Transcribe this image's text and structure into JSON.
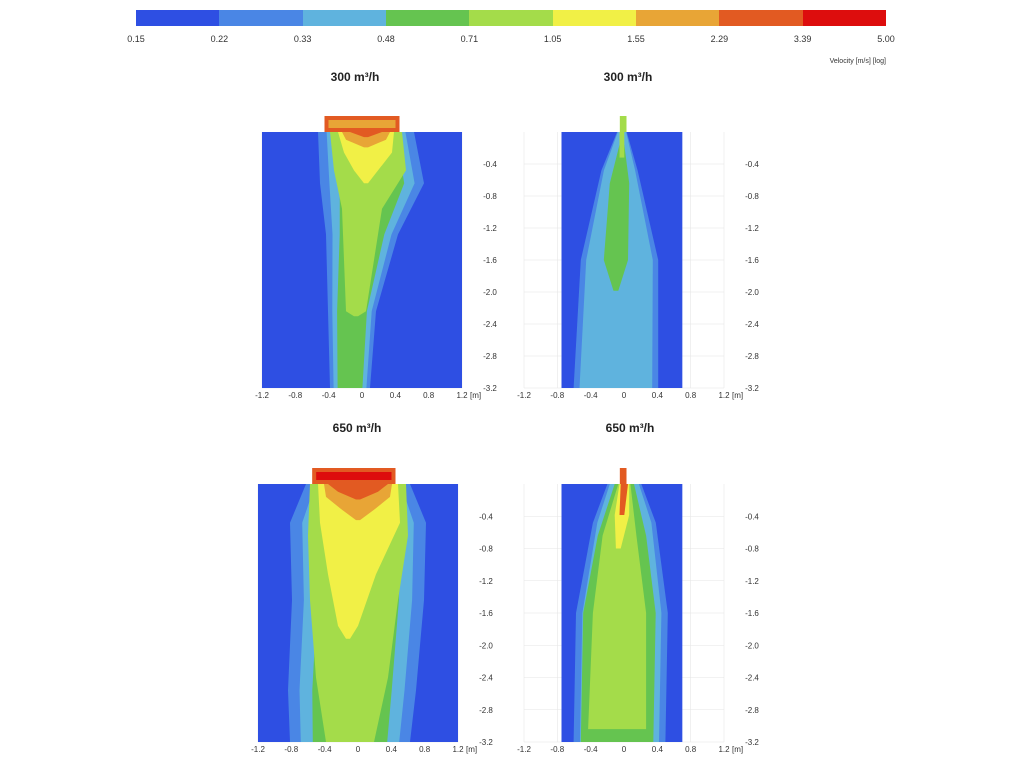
{
  "colorbar": {
    "colors": [
      "#2e4fe3",
      "#4a86e5",
      "#5fb3de",
      "#65c450",
      "#a4dc4a",
      "#f1f046",
      "#e8a536",
      "#e25a22",
      "#dd0d0d"
    ],
    "ticks": [
      "0.15",
      "0.22",
      "0.33",
      "0.48",
      "0.71",
      "1.05",
      "1.55",
      "2.29",
      "3.39",
      "5.00"
    ],
    "label": "Velocity [m/s] [log]"
  },
  "chart_data": [
    {
      "type": "heatmap",
      "title": "300 m³/h",
      "xlabel": "[m]",
      "xticks": [
        -1.2,
        -0.8,
        -0.4,
        0,
        0.4,
        0.8,
        1.2
      ],
      "yticks": [
        -0.4,
        -0.8,
        -1.2,
        -1.6,
        -2.0,
        -2.4,
        -2.8,
        -3.2
      ],
      "xlim": [
        -1.2,
        1.2
      ],
      "ylim": [
        -3.2,
        0
      ],
      "flow_m3h": 300,
      "variant": "wide"
    },
    {
      "type": "heatmap",
      "title": "300 m³/h",
      "xlabel": "[m]",
      "xticks": [
        -1.2,
        -0.8,
        -0.4,
        0,
        0.4,
        0.8,
        1.2
      ],
      "yticks": [
        -0.4,
        -0.8,
        -1.2,
        -1.6,
        -2.0,
        -2.4,
        -2.8,
        -3.2
      ],
      "xlim": [
        -1.2,
        1.2
      ],
      "ylim": [
        -3.2,
        0
      ],
      "flow_m3h": 300,
      "variant": "narrow"
    },
    {
      "type": "heatmap",
      "title": "650 m³/h",
      "xlabel": "[m]",
      "xticks": [
        -1.2,
        -0.8,
        -0.4,
        0,
        0.4,
        0.8,
        1.2
      ],
      "yticks": [
        -0.4,
        -0.8,
        -1.2,
        -1.6,
        -2.0,
        -2.4,
        -2.8,
        -3.2
      ],
      "xlim": [
        -1.2,
        1.2
      ],
      "ylim": [
        -3.2,
        0
      ],
      "flow_m3h": 650,
      "variant": "wide"
    },
    {
      "type": "heatmap",
      "title": "650 m³/h",
      "xlabel": "[m]",
      "xticks": [
        -1.2,
        -0.8,
        -0.4,
        0,
        0.4,
        0.8,
        1.2
      ],
      "yticks": [
        -0.4,
        -0.8,
        -1.2,
        -1.6,
        -2.0,
        -2.4,
        -2.8,
        -3.2
      ],
      "xlim": [
        -1.2,
        1.2
      ],
      "ylim": [
        -3.2,
        0
      ],
      "flow_m3h": 650,
      "variant": "narrow"
    }
  ]
}
